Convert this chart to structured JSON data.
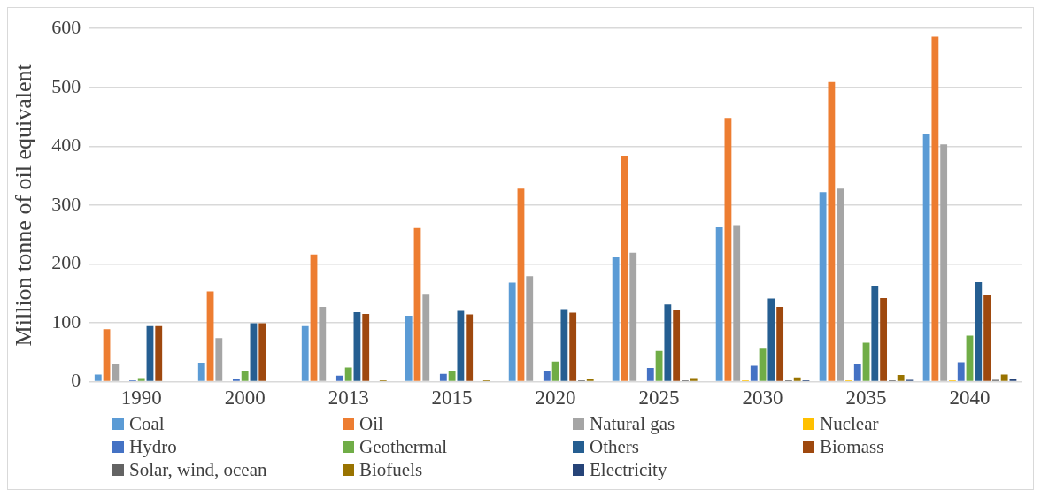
{
  "chart_data": {
    "type": "bar",
    "ylabel": "Million tonne of oil equivalent",
    "categories": [
      "1990",
      "2000",
      "2013",
      "2015",
      "2020",
      "2025",
      "2030",
      "2035",
      "2040"
    ],
    "ylim": [
      0,
      600
    ],
    "yticks": [
      0,
      100,
      200,
      300,
      400,
      500,
      600
    ],
    "grid": "y",
    "legend": "bottom",
    "series": [
      {
        "name": "Coal",
        "color": "#5b9bd5",
        "values": [
          12,
          32,
          94,
          112,
          168,
          211,
          262,
          322,
          420
        ]
      },
      {
        "name": "Oil",
        "color": "#ed7d31",
        "values": [
          89,
          153,
          216,
          261,
          328,
          384,
          448,
          509,
          586
        ]
      },
      {
        "name": "Natural gas",
        "color": "#a5a5a5",
        "values": [
          30,
          74,
          127,
          149,
          179,
          219,
          266,
          328,
          403
        ]
      },
      {
        "name": "Nuclear",
        "color": "#ffc000",
        "values": [
          0,
          0,
          0,
          0,
          0,
          0,
          2,
          2,
          2
        ]
      },
      {
        "name": "Hydro",
        "color": "#4472c4",
        "values": [
          2,
          4,
          10,
          13,
          17,
          23,
          27,
          30,
          33
        ]
      },
      {
        "name": "Geothermal",
        "color": "#70ad47",
        "values": [
          6,
          18,
          24,
          18,
          34,
          52,
          56,
          66,
          78
        ]
      },
      {
        "name": "Others",
        "color": "#255e91",
        "values": [
          94,
          99,
          118,
          120,
          123,
          131,
          141,
          163,
          169
        ]
      },
      {
        "name": "Biomass",
        "color": "#9e480e",
        "values": [
          94,
          99,
          115,
          114,
          117,
          121,
          127,
          142,
          147
        ]
      },
      {
        "name": "Solar, wind, ocean",
        "color": "#636363",
        "values": [
          0,
          0,
          0,
          0,
          2,
          2,
          2,
          2,
          3
        ]
      },
      {
        "name": "Biofuels",
        "color": "#997300",
        "values": [
          0,
          0,
          2,
          2,
          4,
          6,
          7,
          11,
          12
        ]
      },
      {
        "name": "Electricity",
        "color": "#264478",
        "values": [
          0,
          0,
          0,
          0,
          0,
          0,
          2,
          3,
          4
        ]
      }
    ]
  }
}
